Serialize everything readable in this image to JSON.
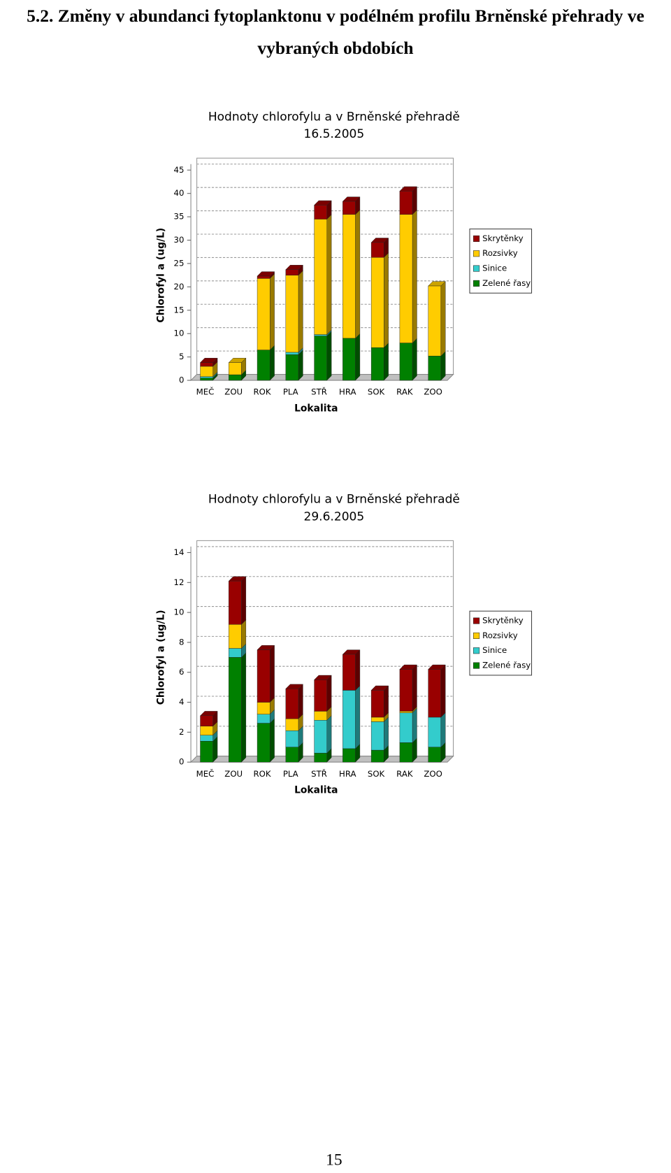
{
  "heading": "5.2. Změny v abundanci fytoplanktonu v podélném profilu Brněnské přehrady ve vybraných obdobích",
  "chart_data": [
    {
      "type": "stacked_bar_3d",
      "title": "Hodnoty chlorofylu a v Brněnské přehradě",
      "subtitle": "16.5.2005",
      "x_label": "Lokalita",
      "y_label": "Chlorofyl a (ug/L)",
      "categories": [
        "MEČ",
        "ZOU",
        "ROK",
        "PLA",
        "STŘ",
        "HRA",
        "SOK",
        "RAK",
        "ZOO"
      ],
      "series": [
        {
          "name": "Skrytěnky",
          "color": "#990000",
          "values": [
            0.8,
            0,
            0.5,
            1.2,
            3,
            2.8,
            3.2,
            5,
            0
          ]
        },
        {
          "name": "Rozsivky",
          "color": "#ffcc00",
          "values": [
            2.2,
            2.6,
            15.3,
            16.5,
            24.7,
            26.5,
            19.3,
            27.5,
            15
          ]
        },
        {
          "name": "Sinice",
          "color": "#33cccc",
          "values": [
            0.3,
            0,
            0,
            0.5,
            0.3,
            0,
            0,
            0,
            0
          ]
        },
        {
          "name": "Zelené řasy",
          "color": "#008000",
          "values": [
            0.5,
            1.2,
            6.5,
            5.5,
            9.5,
            9,
            7,
            8,
            5.2
          ]
        }
      ],
      "ylim": [
        0,
        45
      ],
      "yticks": [
        0,
        5,
        10,
        15,
        20,
        25,
        30,
        35,
        40,
        45
      ],
      "grid": true,
      "legend": "right"
    },
    {
      "type": "stacked_bar_3d",
      "title": "Hodnoty chlorofylu a v Brněnské přehradě",
      "subtitle": "29.6.2005",
      "x_label": "Lokalita",
      "y_label": "Chlorofyl a (ug/L)",
      "categories": [
        "MEČ",
        "ZOU",
        "ROK",
        "PLA",
        "STŘ",
        "HRA",
        "SOK",
        "RAK",
        "ZOO"
      ],
      "series": [
        {
          "name": "Skrytěnky",
          "color": "#990000",
          "values": [
            0.7,
            2.9,
            3.5,
            2,
            2.1,
            2.4,
            1.8,
            2.8,
            3.2
          ]
        },
        {
          "name": "Rozsivky",
          "color": "#ffcc00",
          "values": [
            0.6,
            1.6,
            0.8,
            0.8,
            0.6,
            0,
            0.3,
            0.1,
            0
          ]
        },
        {
          "name": "Sinice",
          "color": "#33cccc",
          "values": [
            0.4,
            0.6,
            0.6,
            1.1,
            2.2,
            3.9,
            1.9,
            2,
            2
          ]
        },
        {
          "name": "Zelené řasy",
          "color": "#008000",
          "values": [
            1.4,
            7,
            2.6,
            1,
            0.6,
            0.9,
            0.8,
            1.3,
            1
          ]
        }
      ],
      "ylim": [
        0,
        14
      ],
      "yticks": [
        0,
        2,
        4,
        6,
        8,
        10,
        12,
        14
      ],
      "grid": true,
      "legend": "right"
    }
  ],
  "page_number": "15"
}
